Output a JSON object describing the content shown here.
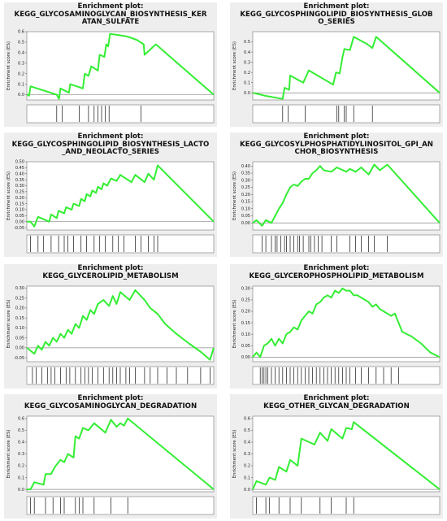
{
  "chart_data": [
    {
      "type": "line",
      "title_lines": [
        "Enrichment plot:",
        "KEGG_GLYCOSAMINOGLYCAN_BIOSYNTHESIS_KER",
        "ATAN_SULFATE"
      ],
      "ylabel": "Enrichment score (ES)",
      "ylim": [
        -0.05,
        0.6
      ],
      "yticks": [
        "0.0",
        "0.1",
        "0.2",
        "0.3",
        "0.4",
        "0.5",
        "0.6"
      ],
      "line_color": "#33ee33",
      "es_curve": [
        [
          0,
          0
        ],
        [
          0.004,
          0
        ],
        [
          0.012,
          -0.01
        ],
        [
          0.02,
          0.08
        ],
        [
          0.16,
          0
        ],
        [
          0.172,
          -0.04
        ],
        [
          0.18,
          0.06
        ],
        [
          0.225,
          0.02
        ],
        [
          0.232,
          0.1
        ],
        [
          0.3,
          0.06
        ],
        [
          0.31,
          0.2
        ],
        [
          0.33,
          0.18
        ],
        [
          0.345,
          0.27
        ],
        [
          0.38,
          0.23
        ],
        [
          0.39,
          0.38
        ],
        [
          0.39,
          0.38
        ],
        [
          0.415,
          0.36
        ],
        [
          0.425,
          0.48
        ],
        [
          0.435,
          0.46
        ],
        [
          0.445,
          0.58
        ],
        [
          0.52,
          0.56
        ],
        [
          0.545,
          0.55
        ],
        [
          0.59,
          0.52
        ],
        [
          0.625,
          0.48
        ],
        [
          0.63,
          0.38
        ],
        [
          0.69,
          0.48
        ],
        [
          1.0,
          0.0
        ]
      ],
      "hits": [
        0.16,
        0.19,
        0.28,
        0.33,
        0.36,
        0.38,
        0.4,
        0.42,
        0.44,
        0.61
      ]
    },
    {
      "type": "line",
      "title_lines": [
        "Enrichment plot:",
        "KEGG_GLYCOSPHINGOLIPID_BIOSYNTHESIS_GLOB",
        "O_SERIES"
      ],
      "ylabel": "Enrichment score (ES)",
      "ylim": [
        -0.07,
        0.6
      ],
      "yticks": [
        "0.0",
        "0.1",
        "0.2",
        "0.3",
        "0.4",
        "0.5"
      ],
      "line_color": "#33ee33",
      "es_curve": [
        [
          0,
          0
        ],
        [
          0.07,
          -0.03
        ],
        [
          0.16,
          -0.06
        ],
        [
          0.17,
          0.05
        ],
        [
          0.195,
          0.03
        ],
        [
          0.2,
          0.17
        ],
        [
          0.27,
          0.1
        ],
        [
          0.3,
          0.22
        ],
        [
          0.43,
          0.08
        ],
        [
          0.445,
          0.2
        ],
        [
          0.465,
          0.19
        ],
        [
          0.48,
          0.35
        ],
        [
          0.49,
          0.43
        ],
        [
          0.52,
          0.42
        ],
        [
          0.54,
          0.55
        ],
        [
          0.61,
          0.48
        ],
        [
          0.64,
          0.44
        ],
        [
          0.66,
          0.55
        ],
        [
          1.0,
          0.0
        ]
      ],
      "hits": [
        0.16,
        0.19,
        0.28,
        0.45,
        0.46,
        0.49,
        0.5,
        0.54,
        0.64
      ]
    },
    {
      "type": "line",
      "title_lines": [
        "Enrichment plot:",
        "KEGG_GLYCOSPHINGOLIPID_BIOSYNTHESIS_LACTO",
        "_AND_NEOLACTO_SERIES"
      ],
      "ylabel": "Enrichment score (ES)",
      "ylim": [
        -0.07,
        0.5
      ],
      "yticks": [
        "-0.05",
        "0.00",
        "0.05",
        "0.10",
        "0.15",
        "0.20",
        "0.25",
        "0.30",
        "0.35",
        "0.40",
        "0.45",
        "0.50"
      ],
      "line_color": "#33ee33",
      "es_curve": [
        [
          0,
          0
        ],
        [
          0.02,
          0.0
        ],
        [
          0.04,
          -0.04
        ],
        [
          0.06,
          0.04
        ],
        [
          0.12,
          0.0
        ],
        [
          0.13,
          0.06
        ],
        [
          0.16,
          0.03
        ],
        [
          0.17,
          0.09
        ],
        [
          0.2,
          0.07
        ],
        [
          0.21,
          0.12
        ],
        [
          0.24,
          0.1
        ],
        [
          0.25,
          0.15
        ],
        [
          0.28,
          0.13
        ],
        [
          0.29,
          0.19
        ],
        [
          0.31,
          0.17
        ],
        [
          0.32,
          0.23
        ],
        [
          0.34,
          0.21
        ],
        [
          0.35,
          0.26
        ],
        [
          0.37,
          0.24
        ],
        [
          0.38,
          0.29
        ],
        [
          0.4,
          0.27
        ],
        [
          0.41,
          0.32
        ],
        [
          0.43,
          0.3
        ],
        [
          0.45,
          0.36
        ],
        [
          0.48,
          0.34
        ],
        [
          0.5,
          0.39
        ],
        [
          0.56,
          0.33
        ],
        [
          0.58,
          0.39
        ],
        [
          0.63,
          0.33
        ],
        [
          0.65,
          0.4
        ],
        [
          0.68,
          0.35
        ],
        [
          0.7,
          0.47
        ],
        [
          1.0,
          0.0
        ]
      ],
      "hits": [
        0.02,
        0.06,
        0.09,
        0.13,
        0.17,
        0.2,
        0.22,
        0.25,
        0.29,
        0.32,
        0.36,
        0.39,
        0.42,
        0.46,
        0.49,
        0.52,
        0.58,
        0.61,
        0.65,
        0.68,
        0.7
      ]
    },
    {
      "type": "line",
      "title_lines": [
        "Enrichment plot:",
        "KEGG_GLYCOSYLPHOSPHATIDYLINOSITOL_GPI_AN",
        "CHOR_BIOSYNTHESIS"
      ],
      "ylabel": "Enrichment score (ES)",
      "ylim": [
        -0.05,
        0.43
      ],
      "yticks": [
        "0.00",
        "0.05",
        "0.10",
        "0.15",
        "0.20",
        "0.25",
        "0.30",
        "0.35",
        "0.40"
      ],
      "line_color": "#33ee33",
      "es_curve": [
        [
          0,
          0
        ],
        [
          0.02,
          0.02
        ],
        [
          0.05,
          -0.02
        ],
        [
          0.07,
          0.02
        ],
        [
          0.1,
          0.0
        ],
        [
          0.12,
          0.05
        ],
        [
          0.14,
          0.1
        ],
        [
          0.16,
          0.14
        ],
        [
          0.18,
          0.2
        ],
        [
          0.2,
          0.25
        ],
        [
          0.22,
          0.27
        ],
        [
          0.24,
          0.26
        ],
        [
          0.26,
          0.29
        ],
        [
          0.28,
          0.31
        ],
        [
          0.3,
          0.31
        ],
        [
          0.32,
          0.35
        ],
        [
          0.34,
          0.37
        ],
        [
          0.36,
          0.4
        ],
        [
          0.38,
          0.37
        ],
        [
          0.42,
          0.36
        ],
        [
          0.45,
          0.39
        ],
        [
          0.5,
          0.36
        ],
        [
          0.52,
          0.38
        ],
        [
          0.55,
          0.36
        ],
        [
          0.58,
          0.39
        ],
        [
          0.62,
          0.34
        ],
        [
          0.65,
          0.41
        ],
        [
          0.68,
          0.37
        ],
        [
          0.72,
          0.41
        ],
        [
          1.0,
          0.0
        ]
      ],
      "hits": [
        0.05,
        0.07,
        0.1,
        0.12,
        0.13,
        0.15,
        0.17,
        0.18,
        0.2,
        0.22,
        0.24,
        0.25,
        0.27,
        0.3,
        0.31,
        0.33,
        0.35,
        0.37,
        0.42,
        0.45,
        0.52,
        0.55,
        0.58,
        0.62,
        0.65,
        0.72
      ]
    },
    {
      "type": "line",
      "title_lines": [
        "Enrichment plot:",
        "KEGG_GLYCEROLIPID_METABOLISM"
      ],
      "ylabel": "Enrichment score (ES)",
      "ylim": [
        -0.07,
        0.31
      ],
      "yticks": [
        "-0.05",
        "0.00",
        "0.05",
        "0.10",
        "0.15",
        "0.20",
        "0.25",
        "0.30"
      ],
      "line_color": "#33ee33",
      "es_curve": [
        [
          0,
          0
        ],
        [
          0.04,
          -0.03
        ],
        [
          0.06,
          0.01
        ],
        [
          0.08,
          -0.01
        ],
        [
          0.1,
          0.03
        ],
        [
          0.12,
          0.01
        ],
        [
          0.14,
          0.05
        ],
        [
          0.16,
          0.03
        ],
        [
          0.18,
          0.07
        ],
        [
          0.2,
          0.05
        ],
        [
          0.22,
          0.09
        ],
        [
          0.24,
          0.07
        ],
        [
          0.26,
          0.12
        ],
        [
          0.28,
          0.1
        ],
        [
          0.3,
          0.16
        ],
        [
          0.32,
          0.14
        ],
        [
          0.34,
          0.19
        ],
        [
          0.36,
          0.17
        ],
        [
          0.38,
          0.22
        ],
        [
          0.41,
          0.24
        ],
        [
          0.44,
          0.21
        ],
        [
          0.46,
          0.26
        ],
        [
          0.48,
          0.22
        ],
        [
          0.5,
          0.28
        ],
        [
          0.55,
          0.24
        ],
        [
          0.58,
          0.29
        ],
        [
          0.63,
          0.24
        ],
        [
          0.66,
          0.2
        ],
        [
          0.7,
          0.17
        ],
        [
          0.74,
          0.12
        ],
        [
          0.8,
          0.07
        ],
        [
          0.87,
          0.02
        ],
        [
          0.93,
          -0.02
        ],
        [
          0.98,
          -0.06
        ],
        [
          1.0,
          0.0
        ]
      ],
      "hits": [
        0.03,
        0.05,
        0.08,
        0.11,
        0.13,
        0.15,
        0.18,
        0.21,
        0.23,
        0.26,
        0.29,
        0.31,
        0.33,
        0.35,
        0.38,
        0.41,
        0.44,
        0.46,
        0.48,
        0.5,
        0.53,
        0.55,
        0.58,
        0.63,
        0.66,
        0.7,
        0.75,
        0.8,
        0.86,
        0.93,
        0.98
      ]
    },
    {
      "type": "line",
      "title_lines": [
        "Enrichment plot:",
        "KEGG_GLYCEROPHOSPHOLIPID_METABOLISM"
      ],
      "ylabel": "Enrichment score (ES)",
      "ylim": [
        -0.02,
        0.31
      ],
      "yticks": [
        "0.00",
        "0.05",
        "0.10",
        "0.15",
        "0.20",
        "0.25",
        "0.30"
      ],
      "line_color": "#33ee33",
      "es_curve": [
        [
          0,
          0
        ],
        [
          0.02,
          0.02
        ],
        [
          0.04,
          0.0
        ],
        [
          0.06,
          0.05
        ],
        [
          0.08,
          0.06
        ],
        [
          0.1,
          0.08
        ],
        [
          0.12,
          0.05
        ],
        [
          0.14,
          0.08
        ],
        [
          0.16,
          0.06
        ],
        [
          0.18,
          0.1
        ],
        [
          0.2,
          0.11
        ],
        [
          0.22,
          0.13
        ],
        [
          0.24,
          0.12
        ],
        [
          0.26,
          0.16
        ],
        [
          0.28,
          0.18
        ],
        [
          0.3,
          0.2
        ],
        [
          0.32,
          0.19
        ],
        [
          0.34,
          0.23
        ],
        [
          0.36,
          0.24
        ],
        [
          0.38,
          0.26
        ],
        [
          0.4,
          0.27
        ],
        [
          0.42,
          0.26
        ],
        [
          0.44,
          0.29
        ],
        [
          0.46,
          0.28
        ],
        [
          0.48,
          0.3
        ],
        [
          0.5,
          0.29
        ],
        [
          0.52,
          0.29
        ],
        [
          0.54,
          0.27
        ],
        [
          0.56,
          0.27
        ],
        [
          0.58,
          0.26
        ],
        [
          0.6,
          0.25
        ],
        [
          0.62,
          0.24
        ],
        [
          0.64,
          0.22
        ],
        [
          0.66,
          0.23
        ],
        [
          0.68,
          0.21
        ],
        [
          0.7,
          0.2
        ],
        [
          0.72,
          0.19
        ],
        [
          0.74,
          0.18
        ],
        [
          0.76,
          0.19
        ],
        [
          0.8,
          0.11
        ],
        [
          0.85,
          0.09
        ],
        [
          0.9,
          0.06
        ],
        [
          0.95,
          0.02
        ],
        [
          1.0,
          0.0
        ]
      ],
      "hits": [
        0.04,
        0.05,
        0.06,
        0.07,
        0.08,
        0.1,
        0.12,
        0.14,
        0.16,
        0.18,
        0.2,
        0.22,
        0.24,
        0.26,
        0.28,
        0.3,
        0.32,
        0.34,
        0.36,
        0.38,
        0.4,
        0.42,
        0.44,
        0.46,
        0.48,
        0.5,
        0.52,
        0.55,
        0.58,
        0.62,
        0.66,
        0.7,
        0.74,
        0.78
      ]
    },
    {
      "type": "line",
      "title_lines": [
        "Enrichment plot:",
        "KEGG_GLYCOSAMINOGLYCAN_DEGRADATION"
      ],
      "ylabel": "Enrichment score (ES)",
      "ylim": [
        -0.02,
        0.62
      ],
      "yticks": [
        "0.0",
        "0.1",
        "0.2",
        "0.3",
        "0.4",
        "0.5",
        "0.6"
      ],
      "line_color": "#33ee33",
      "es_curve": [
        [
          0,
          0
        ],
        [
          0.02,
          0.0
        ],
        [
          0.04,
          0.06
        ],
        [
          0.09,
          0.04
        ],
        [
          0.1,
          0.13
        ],
        [
          0.13,
          0.13
        ],
        [
          0.15,
          0.19
        ],
        [
          0.18,
          0.25
        ],
        [
          0.2,
          0.23
        ],
        [
          0.22,
          0.3
        ],
        [
          0.25,
          0.27
        ],
        [
          0.26,
          0.45
        ],
        [
          0.28,
          0.43
        ],
        [
          0.3,
          0.52
        ],
        [
          0.33,
          0.5
        ],
        [
          0.36,
          0.56
        ],
        [
          0.42,
          0.48
        ],
        [
          0.45,
          0.59
        ],
        [
          0.48,
          0.53
        ],
        [
          0.5,
          0.56
        ],
        [
          0.52,
          0.54
        ],
        [
          0.54,
          0.6
        ],
        [
          1.0,
          0.0
        ]
      ],
      "hits": [
        0.02,
        0.04,
        0.1,
        0.14,
        0.18,
        0.2,
        0.26,
        0.28,
        0.3,
        0.36,
        0.45,
        0.54
      ]
    },
    {
      "type": "line",
      "title_lines": [
        "Enrichment plot:",
        "KEGG_OTHER_GLYCAN_DEGRADATION"
      ],
      "ylabel": "Enrichment score (ES)",
      "ylim": [
        -0.02,
        0.62
      ],
      "yticks": [
        "0.0",
        "0.1",
        "0.2",
        "0.3",
        "0.4",
        "0.5",
        "0.6"
      ],
      "line_color": "#33ee33",
      "es_curve": [
        [
          0,
          0
        ],
        [
          0.02,
          0.07
        ],
        [
          0.07,
          0.04
        ],
        [
          0.09,
          0.1
        ],
        [
          0.12,
          0.08
        ],
        [
          0.14,
          0.19
        ],
        [
          0.18,
          0.15
        ],
        [
          0.2,
          0.25
        ],
        [
          0.24,
          0.2
        ],
        [
          0.26,
          0.43
        ],
        [
          0.33,
          0.38
        ],
        [
          0.36,
          0.48
        ],
        [
          0.4,
          0.41
        ],
        [
          0.42,
          0.51
        ],
        [
          0.48,
          0.43
        ],
        [
          0.5,
          0.52
        ],
        [
          0.53,
          0.51
        ],
        [
          0.54,
          0.57
        ],
        [
          1.0,
          0.0
        ]
      ],
      "hits": [
        0.02,
        0.07,
        0.09,
        0.14,
        0.2,
        0.26,
        0.36,
        0.42,
        0.5,
        0.54
      ]
    }
  ]
}
